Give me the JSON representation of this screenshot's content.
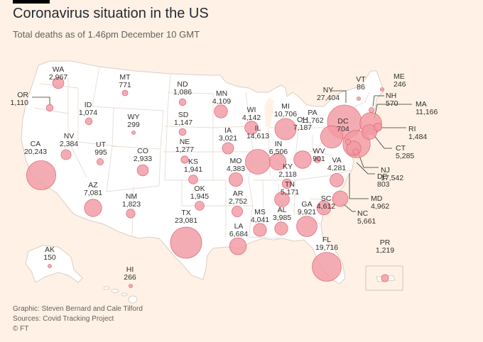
{
  "title": "Coronavirus situation in the US",
  "subtitle": "Total deaths as of 1.46pm December 10 GMT",
  "colors": {
    "background": "#fff1e5",
    "land": "#ffffff",
    "borders": "#d9cfc6",
    "bubble_fill": "#f19aa3",
    "bubble_stroke": "#e0707c",
    "text": "#33302e"
  },
  "states": [
    {
      "code": "WA",
      "deaths": 2967,
      "label": "2,967"
    },
    {
      "code": "OR",
      "deaths": 1110,
      "label": "1,110"
    },
    {
      "code": "CA",
      "deaths": 20243,
      "label": "20,243"
    },
    {
      "code": "NV",
      "deaths": 2384,
      "label": "2,384"
    },
    {
      "code": "ID",
      "deaths": 1074,
      "label": "1,074"
    },
    {
      "code": "MT",
      "deaths": 771,
      "label": "771"
    },
    {
      "code": "WY",
      "deaths": 299,
      "label": "299"
    },
    {
      "code": "UT",
      "deaths": 995,
      "label": "995"
    },
    {
      "code": "CO",
      "deaths": 2933,
      "label": "2,933"
    },
    {
      "code": "AZ",
      "deaths": 7081,
      "label": "7,081"
    },
    {
      "code": "NM",
      "deaths": 1823,
      "label": "1,823"
    },
    {
      "code": "ND",
      "deaths": 1086,
      "label": "1,086"
    },
    {
      "code": "SD",
      "deaths": 1147,
      "label": "1,147"
    },
    {
      "code": "NE",
      "deaths": 1277,
      "label": "1,277"
    },
    {
      "code": "KS",
      "deaths": 1941,
      "label": "1,941"
    },
    {
      "code": "OK",
      "deaths": 1945,
      "label": "1,945"
    },
    {
      "code": "TX",
      "deaths": 23081,
      "label": "23,081"
    },
    {
      "code": "MN",
      "deaths": 4109,
      "label": "4,109"
    },
    {
      "code": "IA",
      "deaths": 3021,
      "label": "3,021"
    },
    {
      "code": "MO",
      "deaths": 4383,
      "label": "4,383"
    },
    {
      "code": "AR",
      "deaths": 2752,
      "label": "2,752"
    },
    {
      "code": "LA",
      "deaths": 6684,
      "label": "6,684"
    },
    {
      "code": "WI",
      "deaths": 4142,
      "label": "4,142"
    },
    {
      "code": "IL",
      "deaths": 14613,
      "label": "14,613"
    },
    {
      "code": "MS",
      "deaths": 4041,
      "label": "4,041"
    },
    {
      "code": "MI",
      "deaths": 10706,
      "label": "10,706"
    },
    {
      "code": "IN",
      "deaths": 6506,
      "label": "6,506"
    },
    {
      "code": "KY",
      "deaths": 2118,
      "label": "2,118"
    },
    {
      "code": "TN",
      "deaths": 5171,
      "label": "5,171"
    },
    {
      "code": "AL",
      "deaths": 3985,
      "label": "3,985"
    },
    {
      "code": "OH",
      "deaths": 7187,
      "label": "7,187"
    },
    {
      "code": "GA",
      "deaths": 9921,
      "label": "9,921"
    },
    {
      "code": "FL",
      "deaths": 19716,
      "label": "19,716"
    },
    {
      "code": "SC",
      "deaths": 4612,
      "label": "4,612"
    },
    {
      "code": "NC",
      "deaths": 5661,
      "label": "5,661"
    },
    {
      "code": "VA",
      "deaths": 4281,
      "label": "4,281"
    },
    {
      "code": "WV",
      "deaths": 901,
      "label": "901"
    },
    {
      "code": "PA",
      "deaths": 11762,
      "label": "11,762"
    },
    {
      "code": "NY",
      "deaths": 27404,
      "label": "27,404"
    },
    {
      "code": "VT",
      "deaths": 86,
      "label": "86"
    },
    {
      "code": "NH",
      "deaths": 570,
      "label": "570"
    },
    {
      "code": "ME",
      "deaths": 246,
      "label": "246"
    },
    {
      "code": "MA",
      "deaths": 11166,
      "label": "11,166"
    },
    {
      "code": "RI",
      "deaths": 1484,
      "label": "1,484"
    },
    {
      "code": "CT",
      "deaths": 5285,
      "label": "5,285"
    },
    {
      "code": "NJ",
      "deaths": 17542,
      "label": "17,542"
    },
    {
      "code": "DE",
      "deaths": 803,
      "label": "803"
    },
    {
      "code": "MD",
      "deaths": 4962,
      "label": "4,962"
    },
    {
      "code": "DC",
      "deaths": 704,
      "label": "704"
    },
    {
      "code": "AK",
      "deaths": 150,
      "label": "150"
    },
    {
      "code": "HI",
      "deaths": 266,
      "label": "266"
    },
    {
      "code": "PR",
      "deaths": 1219,
      "label": "1,219"
    }
  ],
  "footer": {
    "graphic": "Graphic: Steven Bernard and Cale Tilford",
    "sources": "Sources: Covid Tracking Project",
    "logo": "© FT"
  }
}
